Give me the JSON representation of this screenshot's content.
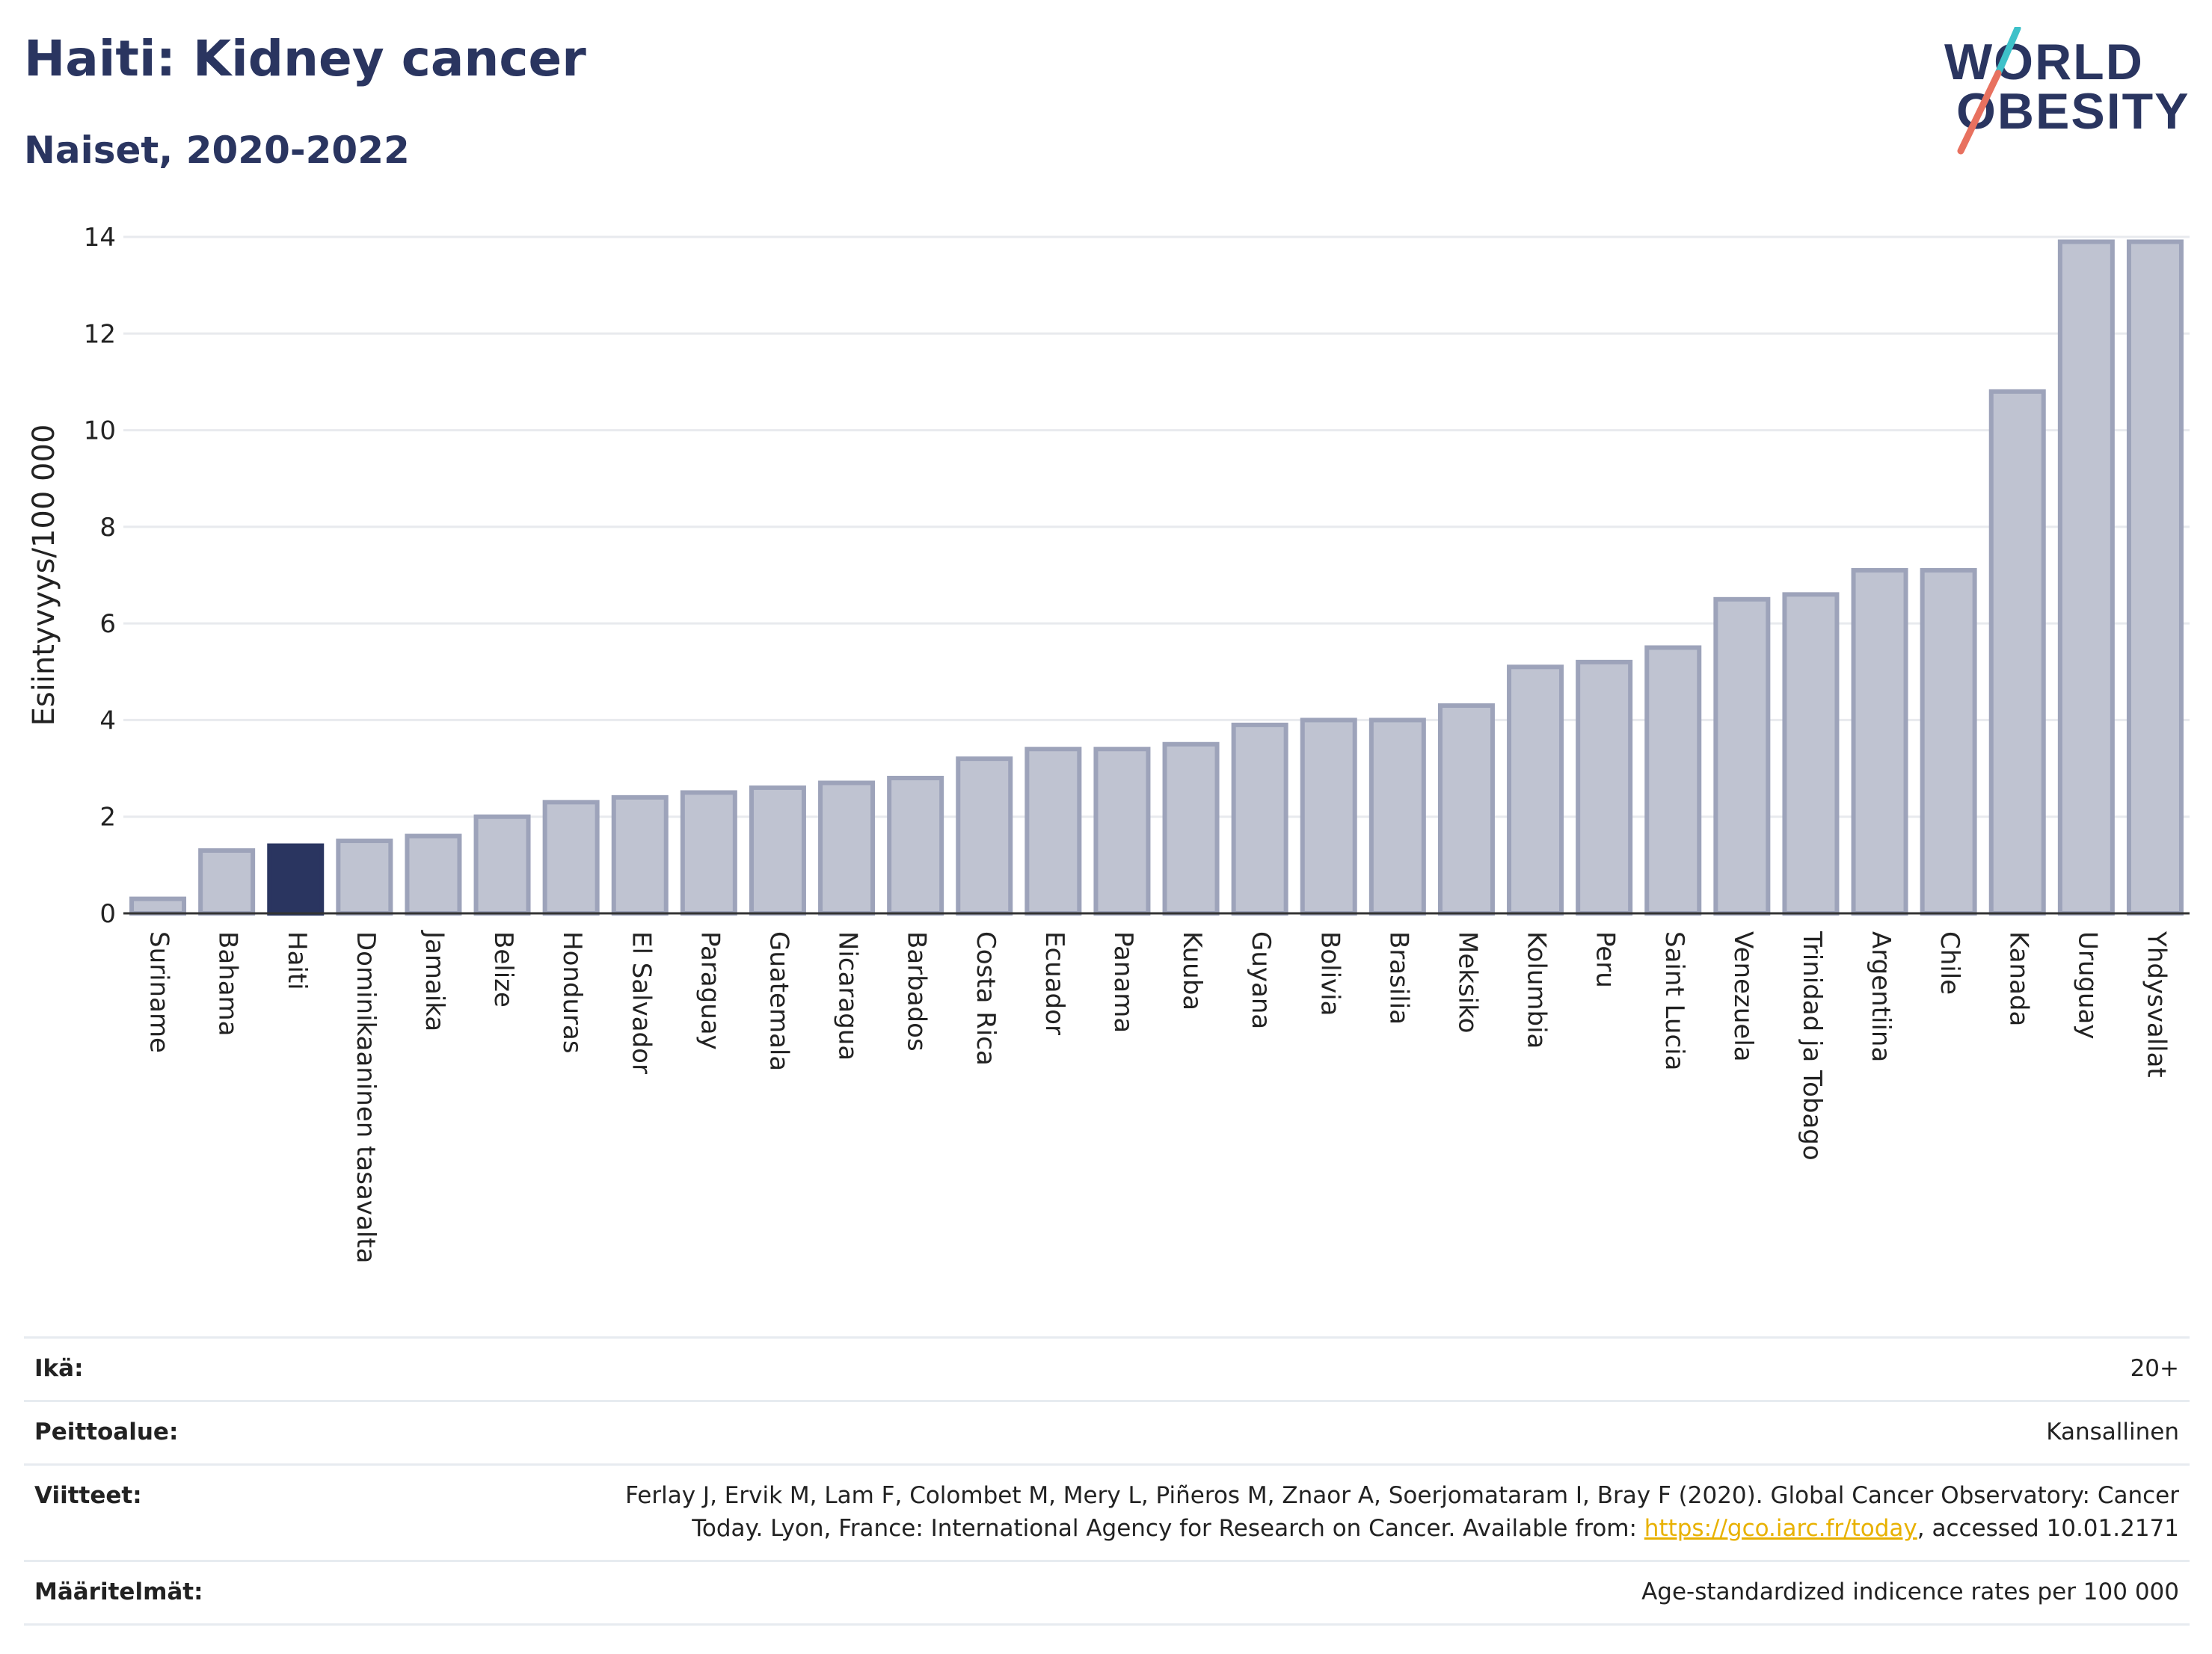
{
  "title": "Haiti: Kidney cancer",
  "subtitle": "Naiset, 2020-2022",
  "logo": {
    "line1": "WORLD",
    "line2": "OBESITY"
  },
  "colors": {
    "bar": "#bfc3d1",
    "bar_stroke": "#9da3ba",
    "highlight": "#2a3560",
    "grid": "#e8eaee",
    "axis": "#333333"
  },
  "chart_data": {
    "type": "bar",
    "ylabel": "Esiintyvyys/100 000",
    "ylim": [
      0,
      14
    ],
    "yticks": [
      0,
      2,
      4,
      6,
      8,
      10,
      12,
      14
    ],
    "grid": true,
    "highlight": "Haiti",
    "categories": [
      "Suriname",
      "Bahama",
      "Haiti",
      "Dominikaaninen tasavalta",
      "Jamaika",
      "Belize",
      "Honduras",
      "El Salvador",
      "Paraguay",
      "Guatemala",
      "Nicaragua",
      "Barbados",
      "Costa Rica",
      "Ecuador",
      "Panama",
      "Kuuba",
      "Guyana",
      "Bolivia",
      "Brasilia",
      "Meksiko",
      "Kolumbia",
      "Peru",
      "Saint Lucia",
      "Venezuela",
      "Trinidad ja Tobago",
      "Argentiina",
      "Chile",
      "Kanada",
      "Uruguay",
      "Yhdysvallat"
    ],
    "values": [
      0.3,
      1.3,
      1.4,
      1.5,
      1.6,
      2.0,
      2.3,
      2.4,
      2.5,
      2.6,
      2.7,
      2.8,
      3.2,
      3.4,
      3.4,
      3.5,
      3.9,
      4.0,
      4.0,
      4.3,
      5.1,
      5.2,
      5.5,
      6.5,
      6.6,
      7.1,
      7.1,
      10.8,
      13.9,
      13.9
    ]
  },
  "meta": {
    "age_label": "Ikä:",
    "age_value": "20+",
    "coverage_label": "Peittoalue:",
    "coverage_value": "Kansallinen",
    "refs_label": "Viitteet:",
    "refs_text1": "Ferlay J, Ervik M, Lam F, Colombet M, Mery L, Piñeros M, Znaor A, Soerjomataram I, Bray F (2020). Global Cancer Observatory: Cancer Today. Lyon, France: International Agency for Research on Cancer. Available from: ",
    "refs_link": "https://gco.iarc.fr/today",
    "refs_text2": ", accessed 10.01.2171",
    "defs_label": "Määritelmät:",
    "defs_value": "Age-standardized indicence rates per 100 000"
  }
}
